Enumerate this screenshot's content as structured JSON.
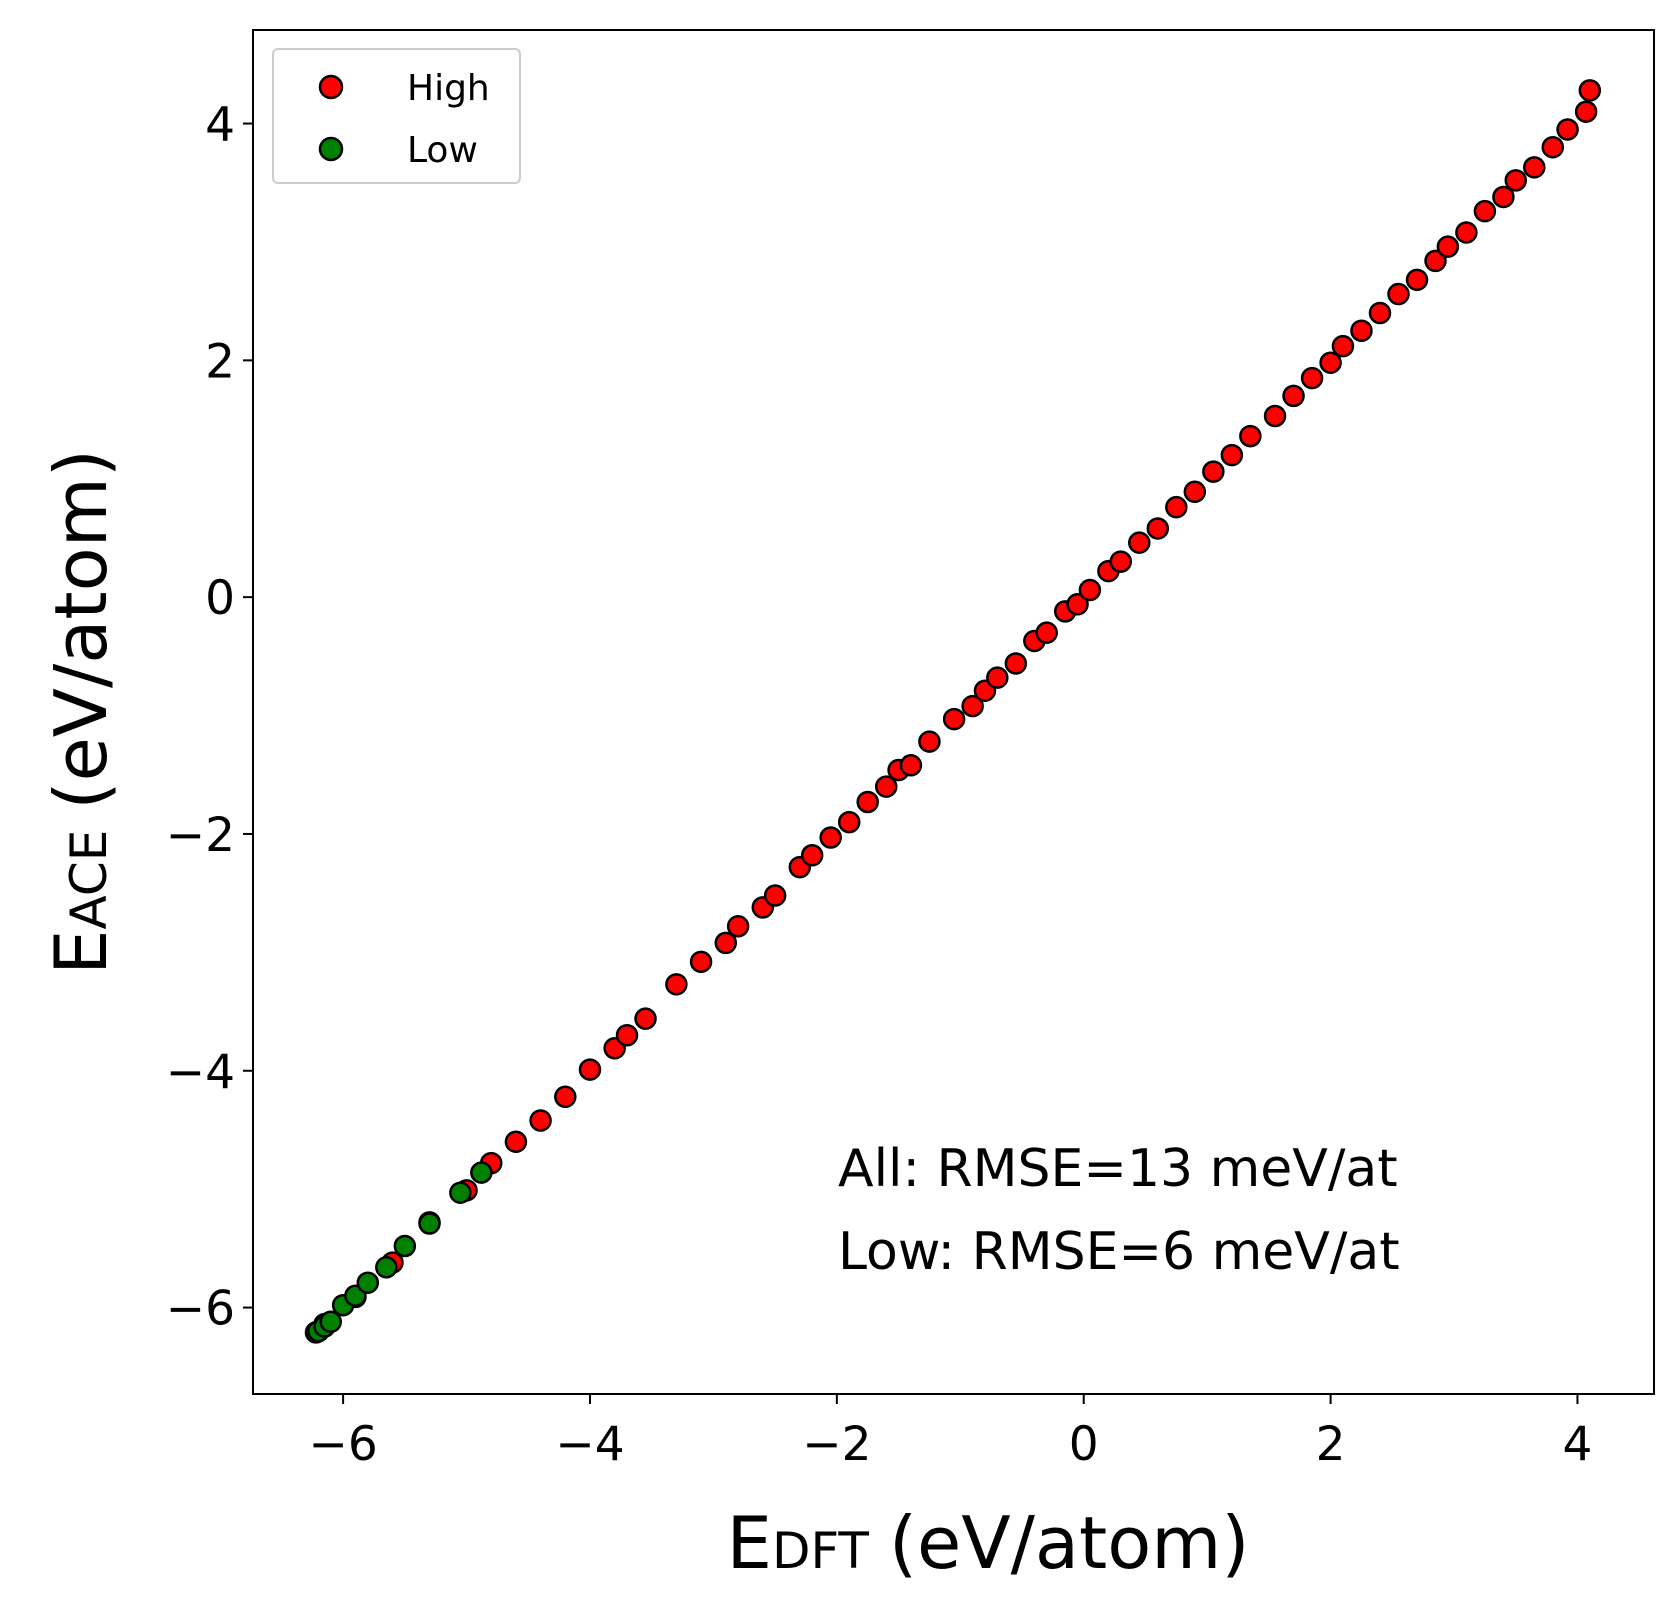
{
  "chart_data": {
    "type": "scatter",
    "xlabel": {
      "main": "E",
      "sub": "DFT",
      "rest": "(eV/atom)"
    },
    "ylabel": {
      "main": "E",
      "sub": "ACE",
      "rest": "(eV/atom)"
    },
    "annotations": [
      "All: RMSE=13 meV/at",
      "Low: RMSE=6 meV/at"
    ],
    "xlim": [
      -6.73,
      4.62
    ],
    "ylim": [
      -6.73,
      4.79
    ],
    "xticks": [
      {
        "value": -6,
        "label": "−6"
      },
      {
        "value": -4,
        "label": "−4"
      },
      {
        "value": -2,
        "label": "−2"
      },
      0,
      2,
      4
    ],
    "yticks": [
      {
        "value": -6,
        "label": "−6"
      },
      {
        "value": -4,
        "label": "−4"
      },
      {
        "value": -2,
        "label": "−2"
      },
      0,
      2,
      4
    ],
    "grid": false,
    "legend": "upper left",
    "series": [
      {
        "name": "High",
        "color": "#ff0000",
        "x": [
          -6.15,
          -5.9,
          -5.6,
          -5.3,
          -5.0,
          -4.8,
          -4.6,
          -4.4,
          -4.2,
          -4.0,
          -3.8,
          -3.7,
          -3.55,
          -3.3,
          -3.1,
          -2.9,
          -2.8,
          -2.6,
          -2.5,
          -2.3,
          -2.2,
          -2.05,
          -1.9,
          -1.75,
          -1.6,
          -1.5,
          -1.4,
          -1.25,
          -1.05,
          -0.9,
          -0.8,
          -0.7,
          -0.55,
          -0.4,
          -0.3,
          -0.15,
          -0.05,
          0.05,
          0.2,
          0.3,
          0.45,
          0.6,
          0.75,
          0.9,
          1.05,
          1.2,
          1.35,
          1.55,
          1.7,
          1.85,
          2.0,
          2.1,
          2.25,
          2.4,
          2.55,
          2.7,
          2.85,
          2.95,
          3.1,
          3.25,
          3.4,
          3.5,
          3.65,
          3.8,
          3.92,
          4.07,
          4.1
        ],
        "values": [
          -6.14,
          -5.91,
          -5.62,
          -5.28,
          -5.01,
          -4.78,
          -4.6,
          -4.42,
          -4.22,
          -3.99,
          -3.81,
          -3.7,
          -3.56,
          -3.27,
          -3.08,
          -2.92,
          -2.78,
          -2.62,
          -2.52,
          -2.28,
          -2.18,
          -2.03,
          -1.9,
          -1.73,
          -1.6,
          -1.46,
          -1.42,
          -1.22,
          -1.03,
          -0.92,
          -0.79,
          -0.68,
          -0.56,
          -0.37,
          -0.3,
          -0.12,
          -0.06,
          0.06,
          0.22,
          0.3,
          0.46,
          0.58,
          0.76,
          0.89,
          1.06,
          1.2,
          1.36,
          1.53,
          1.7,
          1.85,
          1.98,
          2.12,
          2.25,
          2.4,
          2.56,
          2.68,
          2.84,
          2.96,
          3.08,
          3.26,
          3.38,
          3.52,
          3.63,
          3.8,
          3.95,
          4.1,
          4.28
        ]
      },
      {
        "name": "Low",
        "color": "#008000",
        "x": [
          -6.22,
          -6.2,
          -6.15,
          -6.1,
          -6.0,
          -5.9,
          -5.8,
          -5.65,
          -5.5,
          -5.3,
          -5.05,
          -4.88
        ],
        "values": [
          -6.21,
          -6.2,
          -6.16,
          -6.12,
          -5.98,
          -5.9,
          -5.79,
          -5.66,
          -5.48,
          -5.29,
          -5.03,
          -4.86
        ]
      }
    ]
  }
}
